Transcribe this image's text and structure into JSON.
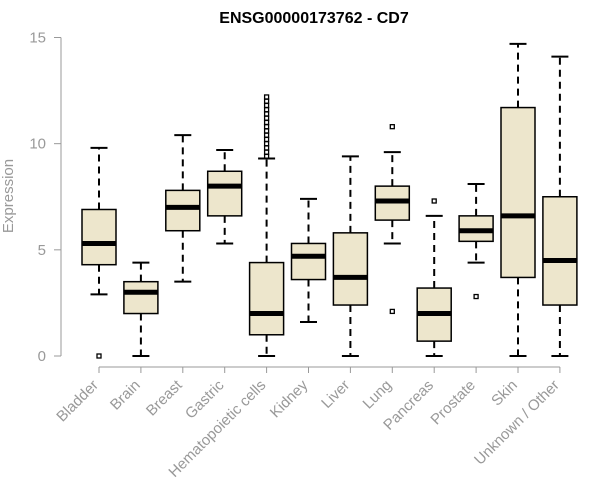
{
  "chart_data": {
    "type": "boxplot",
    "title": "ENSG00000173762 - CD7",
    "xlabel": "",
    "ylabel": "Expression",
    "ylim": [
      0,
      15
    ],
    "yticks": [
      0,
      5,
      10,
      15
    ],
    "colors": {
      "box_fill": "#ede6cc",
      "stroke": "#000000",
      "axis": "#999999"
    },
    "categories": [
      "Bladder",
      "Brain",
      "Breast",
      "Gastric",
      "Hematopoietic cells",
      "Kidney",
      "Liver",
      "Lung",
      "Pancreas",
      "Prostate",
      "Skin",
      "Unknown / Other"
    ],
    "boxes": [
      {
        "name": "Bladder",
        "whislo": 2.9,
        "q1": 4.3,
        "med": 5.3,
        "q3": 6.9,
        "whishi": 9.8,
        "fliers": [
          0.0
        ]
      },
      {
        "name": "Brain",
        "whislo": 0.0,
        "q1": 2.0,
        "med": 3.0,
        "q3": 3.5,
        "whishi": 4.4,
        "fliers": []
      },
      {
        "name": "Breast",
        "whislo": 3.5,
        "q1": 5.9,
        "med": 7.0,
        "q3": 7.8,
        "whishi": 10.4,
        "fliers": []
      },
      {
        "name": "Gastric",
        "whislo": 5.3,
        "q1": 6.6,
        "med": 8.0,
        "q3": 8.7,
        "whishi": 9.7,
        "fliers": []
      },
      {
        "name": "Hematopoietic cells",
        "whislo": 0.0,
        "q1": 1.0,
        "med": 2.0,
        "q3": 4.4,
        "whishi": 9.3,
        "fliers": [
          9.4,
          9.6,
          9.8,
          10.0,
          10.2,
          10.4,
          10.6,
          10.8,
          11.0,
          11.2,
          11.4,
          11.6,
          11.8,
          12.0,
          12.2
        ]
      },
      {
        "name": "Kidney",
        "whislo": 1.6,
        "q1": 3.6,
        "med": 4.7,
        "q3": 5.3,
        "whishi": 7.4,
        "fliers": []
      },
      {
        "name": "Liver",
        "whislo": 0.0,
        "q1": 2.4,
        "med": 3.7,
        "q3": 5.8,
        "whishi": 9.4,
        "fliers": []
      },
      {
        "name": "Lung",
        "whislo": 5.3,
        "q1": 6.4,
        "med": 7.3,
        "q3": 8.0,
        "whishi": 9.6,
        "fliers": [
          10.8,
          2.1
        ]
      },
      {
        "name": "Pancreas",
        "whislo": 0.0,
        "q1": 0.7,
        "med": 2.0,
        "q3": 3.2,
        "whishi": 6.6,
        "fliers": [
          7.3
        ]
      },
      {
        "name": "Prostate",
        "whislo": 4.4,
        "q1": 5.4,
        "med": 5.9,
        "q3": 6.6,
        "whishi": 8.1,
        "fliers": [
          2.8
        ]
      },
      {
        "name": "Skin",
        "whislo": 0.0,
        "q1": 3.7,
        "med": 6.6,
        "q3": 11.7,
        "whishi": 14.7,
        "fliers": []
      },
      {
        "name": "Unknown / Other",
        "whislo": 0.0,
        "q1": 2.4,
        "med": 4.5,
        "q3": 7.5,
        "whishi": 14.1,
        "fliers": []
      }
    ]
  }
}
